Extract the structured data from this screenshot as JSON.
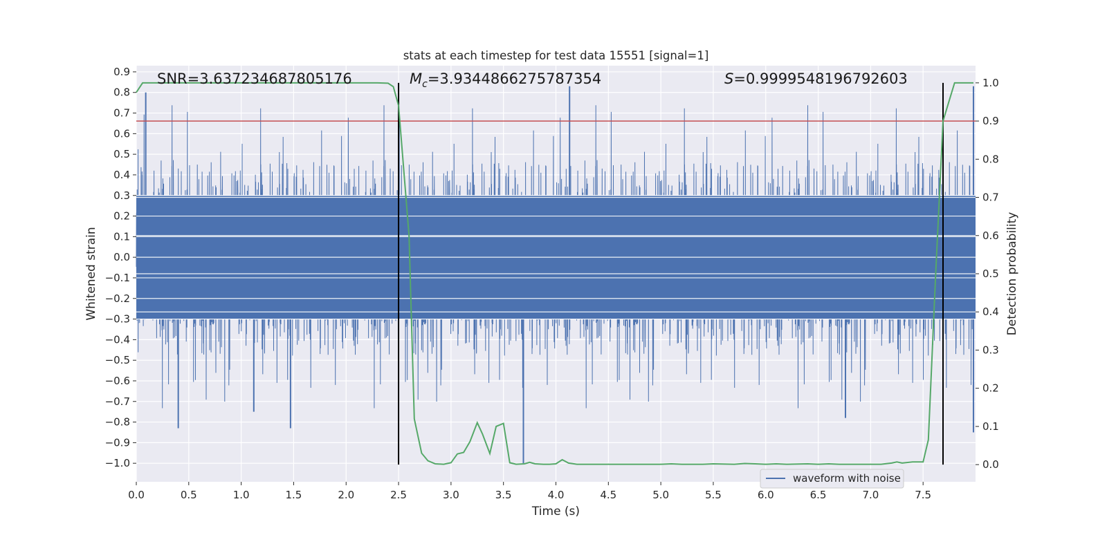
{
  "chart_data": {
    "type": "line",
    "title": "stats at each timestep for test data 15551 [signal=1]",
    "xlabel": "Time (s)",
    "ylabel_left": "Whitened strain",
    "ylabel_right": "Detection probability",
    "xlim": [
      0.0,
      8.0
    ],
    "ylim_left": [
      -1.09,
      0.93
    ],
    "ylim_right": [
      -0.045,
      1.045
    ],
    "x_ticks": [
      "0.0",
      "0.5",
      "1.0",
      "1.5",
      "2.0",
      "2.5",
      "3.0",
      "3.5",
      "4.0",
      "4.5",
      "5.0",
      "5.5",
      "6.0",
      "6.5",
      "7.0",
      "7.5"
    ],
    "y_left_ticks": [
      "0.9",
      "0.8",
      "0.7",
      "0.6",
      "0.5",
      "0.4",
      "0.3",
      "0.2",
      "0.1",
      "0.0",
      "-0.1",
      "-0.2",
      "-0.3",
      "-0.4",
      "-0.5",
      "-0.6",
      "-0.7",
      "-0.8",
      "-0.9",
      "-1.0"
    ],
    "y_right_ticks": [
      "1.0",
      "0.9",
      "0.8",
      "0.7",
      "0.6",
      "0.5",
      "0.4",
      "0.3",
      "0.2",
      "0.1",
      "0.0"
    ],
    "grid": true,
    "legend_position": "bottom-right",
    "annotations": {
      "snr": "SNR=3.637234687805176",
      "mc_symbol": "M",
      "mc_sub": "c",
      "mc_value": "=3.9344866275787354",
      "s_symbol": "S",
      "s_value": "=0.9999548196792603"
    },
    "threshold_right": 0.9,
    "vertical_markers_x": [
      2.5,
      7.69
    ],
    "series": [
      {
        "name": "waveform with noise",
        "axis": "left",
        "color": "#4c72b0",
        "style": "noisy-waveform",
        "sample_rate_hz": 2048,
        "core_amplitude": 0.3,
        "max_value": 0.83,
        "min_value": -1.0
      },
      {
        "axis": "right",
        "color": "#55a868",
        "x": [
          0.0,
          0.06,
          0.5,
          1.0,
          1.5,
          2.0,
          2.3,
          2.4,
          2.45,
          2.5,
          2.6,
          2.65,
          2.72,
          2.78,
          2.85,
          2.93,
          3.0,
          3.06,
          3.12,
          3.18,
          3.25,
          3.3,
          3.37,
          3.43,
          3.5,
          3.56,
          3.62,
          3.7,
          3.75,
          3.8,
          3.88,
          3.94,
          4.0,
          4.06,
          4.12,
          4.2,
          4.5,
          4.8,
          5.0,
          5.1,
          5.2,
          5.4,
          5.5,
          5.7,
          5.8,
          5.9,
          6.0,
          6.1,
          6.2,
          6.4,
          6.5,
          6.6,
          6.7,
          6.8,
          7.0,
          7.1,
          7.2,
          7.25,
          7.3,
          7.4,
          7.5,
          7.55,
          7.62,
          7.69,
          7.8,
          7.98
        ],
        "values": [
          0.975,
          1.0,
          1.0,
          1.0,
          1.0,
          1.0,
          1.0,
          0.999,
          0.99,
          0.94,
          0.6,
          0.12,
          0.03,
          0.01,
          0.002,
          0.001,
          0.005,
          0.028,
          0.032,
          0.06,
          0.11,
          0.08,
          0.029,
          0.1,
          0.108,
          0.005,
          0.001,
          0.002,
          0.006,
          0.002,
          0.001,
          0.001,
          0.002,
          0.013,
          0.004,
          0.001,
          0.001,
          0.001,
          0.001,
          0.002,
          0.001,
          0.001,
          0.002,
          0.001,
          0.003,
          0.002,
          0.001,
          0.002,
          0.001,
          0.002,
          0.001,
          0.002,
          0.001,
          0.001,
          0.001,
          0.001,
          0.004,
          0.007,
          0.004,
          0.007,
          0.007,
          0.065,
          0.5,
          0.9,
          1.0,
          1.0
        ]
      }
    ]
  },
  "colors": {
    "plot_background": "#eaeaf2",
    "grid": "#ffffff",
    "threshold_line": "#c44e52",
    "marker_line": "#000000",
    "waveform": "#4c72b0",
    "probability": "#55a868"
  }
}
